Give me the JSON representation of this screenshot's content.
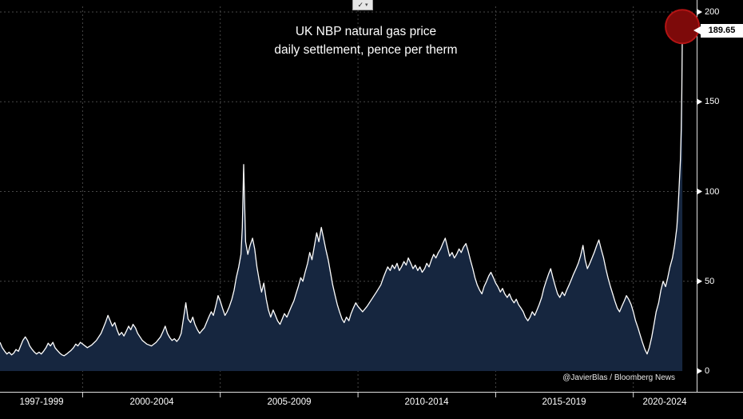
{
  "title": {
    "line1": "UK NBP natural gas price",
    "line2": "daily settlement, pence per therm"
  },
  "toolbar": {
    "icon_check": "✓",
    "icon_caret": "▾"
  },
  "price_flag": {
    "label": "189.65"
  },
  "attribution": {
    "text": "@JavierBlas / Bloomberg News"
  },
  "colors": {
    "background": "#000000",
    "line": "#ffffff",
    "area_fill": "#16263f",
    "grid": "#474747",
    "axis": "#e0e0e0",
    "highlight_fill": "#7d0a0a",
    "highlight_stroke": "#b31414",
    "flag_bg": "#ffffff",
    "flag_text": "#000000"
  },
  "chart_data": {
    "type": "area",
    "title": "UK NBP natural gas price",
    "subtitle": "daily settlement, pence per therm",
    "xlabel": "",
    "ylabel": "pence per therm",
    "legend": "none",
    "grid": "dashed",
    "x_range": [
      1997,
      2022.3
    ],
    "y_range": [
      0,
      200
    ],
    "x_labels": [
      "1997-1999",
      "2000-2004",
      "2005-2009",
      "2010-2014",
      "2015-2019",
      "2020-2024"
    ],
    "x_gridlines": [
      2000,
      2005,
      2010,
      2015,
      2020
    ],
    "y_ticks": [
      {
        "label": "200",
        "value": 200
      },
      {
        "label": "150",
        "value": 150
      },
      {
        "label": "100",
        "value": 100
      },
      {
        "label": "50",
        "value": 50
      },
      {
        "label": "0",
        "value": 0
      }
    ],
    "series_name": "UK NBP daily settlement (pence per therm)",
    "last_value": 189.65,
    "points": [
      [
        1997.0,
        16
      ],
      [
        1997.08,
        13
      ],
      [
        1997.17,
        11
      ],
      [
        1997.25,
        9.5
      ],
      [
        1997.33,
        10.5
      ],
      [
        1997.42,
        9
      ],
      [
        1997.5,
        10
      ],
      [
        1997.58,
        12
      ],
      [
        1997.67,
        11
      ],
      [
        1997.75,
        14
      ],
      [
        1997.83,
        17
      ],
      [
        1997.92,
        19
      ],
      [
        1998.0,
        17
      ],
      [
        1998.08,
        14
      ],
      [
        1998.17,
        12
      ],
      [
        1998.25,
        10.5
      ],
      [
        1998.33,
        9.5
      ],
      [
        1998.42,
        10.5
      ],
      [
        1998.5,
        9.5
      ],
      [
        1998.58,
        11
      ],
      [
        1998.67,
        13
      ],
      [
        1998.75,
        15.5
      ],
      [
        1998.83,
        14
      ],
      [
        1998.92,
        16
      ],
      [
        1999.0,
        13
      ],
      [
        1999.08,
        11.5
      ],
      [
        1999.17,
        10
      ],
      [
        1999.25,
        9
      ],
      [
        1999.33,
        8.5
      ],
      [
        1999.42,
        9.5
      ],
      [
        1999.5,
        10.5
      ],
      [
        1999.58,
        11.5
      ],
      [
        1999.67,
        13
      ],
      [
        1999.75,
        15
      ],
      [
        1999.83,
        14
      ],
      [
        1999.92,
        16
      ],
      [
        2000.0,
        15
      ],
      [
        2000.17,
        13
      ],
      [
        2000.33,
        14.5
      ],
      [
        2000.5,
        17
      ],
      [
        2000.67,
        21
      ],
      [
        2000.83,
        27
      ],
      [
        2000.92,
        31
      ],
      [
        2001.0,
        28
      ],
      [
        2001.08,
        25
      ],
      [
        2001.17,
        27
      ],
      [
        2001.25,
        23
      ],
      [
        2001.33,
        20
      ],
      [
        2001.42,
        21.5
      ],
      [
        2001.5,
        19.5
      ],
      [
        2001.58,
        22
      ],
      [
        2001.67,
        25
      ],
      [
        2001.75,
        23
      ],
      [
        2001.83,
        26
      ],
      [
        2001.92,
        24
      ],
      [
        2002.0,
        21
      ],
      [
        2002.17,
        17
      ],
      [
        2002.33,
        15
      ],
      [
        2002.5,
        14
      ],
      [
        2002.67,
        16
      ],
      [
        2002.83,
        19
      ],
      [
        2002.92,
        22
      ],
      [
        2003.0,
        25
      ],
      [
        2003.08,
        21
      ],
      [
        2003.17,
        18.5
      ],
      [
        2003.25,
        17
      ],
      [
        2003.33,
        18
      ],
      [
        2003.42,
        16.5
      ],
      [
        2003.5,
        18
      ],
      [
        2003.58,
        21
      ],
      [
        2003.67,
        30
      ],
      [
        2003.75,
        38
      ],
      [
        2003.83,
        29
      ],
      [
        2003.92,
        27
      ],
      [
        2004.0,
        30
      ],
      [
        2004.08,
        26
      ],
      [
        2004.17,
        23
      ],
      [
        2004.25,
        21
      ],
      [
        2004.33,
        22.5
      ],
      [
        2004.42,
        24
      ],
      [
        2004.5,
        27
      ],
      [
        2004.58,
        30
      ],
      [
        2004.67,
        33
      ],
      [
        2004.75,
        31
      ],
      [
        2004.83,
        36
      ],
      [
        2004.92,
        42
      ],
      [
        2005.0,
        39
      ],
      [
        2005.08,
        35
      ],
      [
        2005.17,
        31
      ],
      [
        2005.25,
        33
      ],
      [
        2005.33,
        36
      ],
      [
        2005.42,
        40
      ],
      [
        2005.5,
        45
      ],
      [
        2005.58,
        52
      ],
      [
        2005.67,
        58
      ],
      [
        2005.75,
        65
      ],
      [
        2005.8,
        80
      ],
      [
        2005.85,
        115
      ],
      [
        2005.88,
        95
      ],
      [
        2005.92,
        72
      ],
      [
        2006.0,
        65
      ],
      [
        2006.08,
        70
      ],
      [
        2006.17,
        74
      ],
      [
        2006.25,
        68
      ],
      [
        2006.33,
        58
      ],
      [
        2006.42,
        50
      ],
      [
        2006.5,
        44
      ],
      [
        2006.58,
        49
      ],
      [
        2006.67,
        40
      ],
      [
        2006.75,
        34
      ],
      [
        2006.83,
        30
      ],
      [
        2006.92,
        34
      ],
      [
        2007.0,
        31
      ],
      [
        2007.08,
        28
      ],
      [
        2007.17,
        26
      ],
      [
        2007.25,
        29
      ],
      [
        2007.33,
        32
      ],
      [
        2007.42,
        30
      ],
      [
        2007.5,
        33
      ],
      [
        2007.58,
        36
      ],
      [
        2007.67,
        39
      ],
      [
        2007.75,
        43
      ],
      [
        2007.83,
        47
      ],
      [
        2007.92,
        52
      ],
      [
        2008.0,
        50
      ],
      [
        2008.08,
        55
      ],
      [
        2008.17,
        60
      ],
      [
        2008.25,
        66
      ],
      [
        2008.33,
        62
      ],
      [
        2008.42,
        70
      ],
      [
        2008.5,
        77
      ],
      [
        2008.58,
        72
      ],
      [
        2008.67,
        80
      ],
      [
        2008.75,
        74
      ],
      [
        2008.83,
        68
      ],
      [
        2008.92,
        62
      ],
      [
        2009.0,
        55
      ],
      [
        2009.08,
        48
      ],
      [
        2009.17,
        42
      ],
      [
        2009.25,
        37
      ],
      [
        2009.33,
        33
      ],
      [
        2009.42,
        29
      ],
      [
        2009.5,
        27
      ],
      [
        2009.58,
        30
      ],
      [
        2009.67,
        28
      ],
      [
        2009.75,
        32
      ],
      [
        2009.83,
        35
      ],
      [
        2009.92,
        38
      ],
      [
        2010.0,
        36
      ],
      [
        2010.17,
        33
      ],
      [
        2010.33,
        36
      ],
      [
        2010.5,
        40
      ],
      [
        2010.67,
        44
      ],
      [
        2010.83,
        48
      ],
      [
        2010.92,
        52
      ],
      [
        2011.0,
        55
      ],
      [
        2011.08,
        58
      ],
      [
        2011.17,
        56
      ],
      [
        2011.25,
        59
      ],
      [
        2011.33,
        57
      ],
      [
        2011.42,
        60
      ],
      [
        2011.5,
        56
      ],
      [
        2011.58,
        58
      ],
      [
        2011.67,
        61
      ],
      [
        2011.75,
        59
      ],
      [
        2011.83,
        63
      ],
      [
        2011.92,
        60
      ],
      [
        2012.0,
        57
      ],
      [
        2012.08,
        59
      ],
      [
        2012.17,
        56
      ],
      [
        2012.25,
        58
      ],
      [
        2012.33,
        55
      ],
      [
        2012.42,
        57
      ],
      [
        2012.5,
        60
      ],
      [
        2012.58,
        58
      ],
      [
        2012.67,
        62
      ],
      [
        2012.75,
        65
      ],
      [
        2012.83,
        63
      ],
      [
        2012.92,
        66
      ],
      [
        2013.0,
        68
      ],
      [
        2013.08,
        71
      ],
      [
        2013.17,
        74
      ],
      [
        2013.25,
        69
      ],
      [
        2013.33,
        64
      ],
      [
        2013.42,
        66
      ],
      [
        2013.5,
        63
      ],
      [
        2013.58,
        65
      ],
      [
        2013.67,
        68
      ],
      [
        2013.75,
        66
      ],
      [
        2013.83,
        69
      ],
      [
        2013.92,
        71
      ],
      [
        2014.0,
        67
      ],
      [
        2014.08,
        62
      ],
      [
        2014.17,
        57
      ],
      [
        2014.25,
        52
      ],
      [
        2014.33,
        48
      ],
      [
        2014.42,
        45
      ],
      [
        2014.5,
        43
      ],
      [
        2014.58,
        47
      ],
      [
        2014.67,
        50
      ],
      [
        2014.75,
        53
      ],
      [
        2014.83,
        55
      ],
      [
        2014.92,
        52
      ],
      [
        2015.0,
        49
      ],
      [
        2015.08,
        47
      ],
      [
        2015.17,
        44
      ],
      [
        2015.25,
        46
      ],
      [
        2015.33,
        43
      ],
      [
        2015.42,
        41
      ],
      [
        2015.5,
        43
      ],
      [
        2015.58,
        40
      ],
      [
        2015.67,
        38
      ],
      [
        2015.75,
        40
      ],
      [
        2015.83,
        37
      ],
      [
        2015.92,
        35
      ],
      [
        2016.0,
        33
      ],
      [
        2016.08,
        30
      ],
      [
        2016.17,
        28
      ],
      [
        2016.25,
        30
      ],
      [
        2016.33,
        33
      ],
      [
        2016.42,
        31
      ],
      [
        2016.5,
        34
      ],
      [
        2016.58,
        37
      ],
      [
        2016.67,
        41
      ],
      [
        2016.75,
        46
      ],
      [
        2016.83,
        50
      ],
      [
        2016.92,
        54
      ],
      [
        2017.0,
        57
      ],
      [
        2017.08,
        52
      ],
      [
        2017.17,
        47
      ],
      [
        2017.25,
        43
      ],
      [
        2017.33,
        41
      ],
      [
        2017.42,
        44
      ],
      [
        2017.5,
        42
      ],
      [
        2017.58,
        45
      ],
      [
        2017.67,
        48
      ],
      [
        2017.75,
        51
      ],
      [
        2017.83,
        54
      ],
      [
        2017.92,
        57
      ],
      [
        2018.0,
        60
      ],
      [
        2018.08,
        64
      ],
      [
        2018.17,
        70
      ],
      [
        2018.25,
        62
      ],
      [
        2018.33,
        57
      ],
      [
        2018.42,
        60
      ],
      [
        2018.5,
        63
      ],
      [
        2018.58,
        66
      ],
      [
        2018.67,
        70
      ],
      [
        2018.75,
        73
      ],
      [
        2018.83,
        68
      ],
      [
        2018.92,
        63
      ],
      [
        2019.0,
        57
      ],
      [
        2019.08,
        52
      ],
      [
        2019.17,
        47
      ],
      [
        2019.25,
        43
      ],
      [
        2019.33,
        39
      ],
      [
        2019.42,
        35
      ],
      [
        2019.5,
        33
      ],
      [
        2019.58,
        36
      ],
      [
        2019.67,
        39
      ],
      [
        2019.75,
        42
      ],
      [
        2019.83,
        40
      ],
      [
        2019.92,
        37
      ],
      [
        2020.0,
        33
      ],
      [
        2020.08,
        28
      ],
      [
        2020.17,
        24
      ],
      [
        2020.25,
        20
      ],
      [
        2020.33,
        16
      ],
      [
        2020.42,
        12
      ],
      [
        2020.5,
        9.5
      ],
      [
        2020.58,
        13
      ],
      [
        2020.67,
        19
      ],
      [
        2020.75,
        26
      ],
      [
        2020.83,
        33
      ],
      [
        2020.92,
        38
      ],
      [
        2021.0,
        45
      ],
      [
        2021.08,
        50
      ],
      [
        2021.17,
        47
      ],
      [
        2021.25,
        52
      ],
      [
        2021.33,
        58
      ],
      [
        2021.42,
        63
      ],
      [
        2021.5,
        70
      ],
      [
        2021.58,
        80
      ],
      [
        2021.63,
        92
      ],
      [
        2021.67,
        105
      ],
      [
        2021.71,
        118
      ],
      [
        2021.74,
        135
      ],
      [
        2021.76,
        155
      ],
      [
        2021.78,
        189.65
      ]
    ]
  }
}
